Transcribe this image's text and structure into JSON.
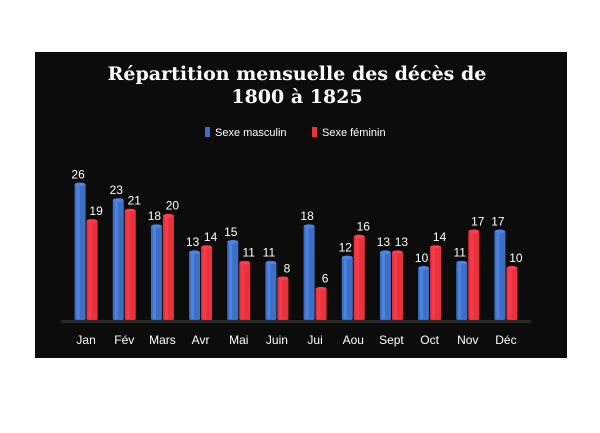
{
  "chart_data": {
    "type": "bar",
    "title_lines": [
      "Répartition mensuelle des décès de",
      "1800 à 1825"
    ],
    "categories": [
      "Jan",
      "Fév",
      "Mars",
      "Avr",
      "Mai",
      "Juin",
      "Jui",
      "Aou",
      "Sept",
      "Oct",
      "Nov",
      "Déc"
    ],
    "series": [
      {
        "name": "Sexe masculin",
        "color": "#3f6fc3",
        "values": [
          26,
          23,
          18,
          13,
          15,
          11,
          18,
          12,
          13,
          10,
          11,
          17
        ]
      },
      {
        "name": "Sexe féminin",
        "color": "#e8323d",
        "values": [
          19,
          21,
          20,
          14,
          11,
          8,
          6,
          16,
          13,
          14,
          17,
          10
        ]
      }
    ],
    "ylim": [
      0,
      28
    ],
    "legend_position": "top",
    "grid": false,
    "background": "#0c0c0c",
    "text_color": "#ffffff"
  }
}
